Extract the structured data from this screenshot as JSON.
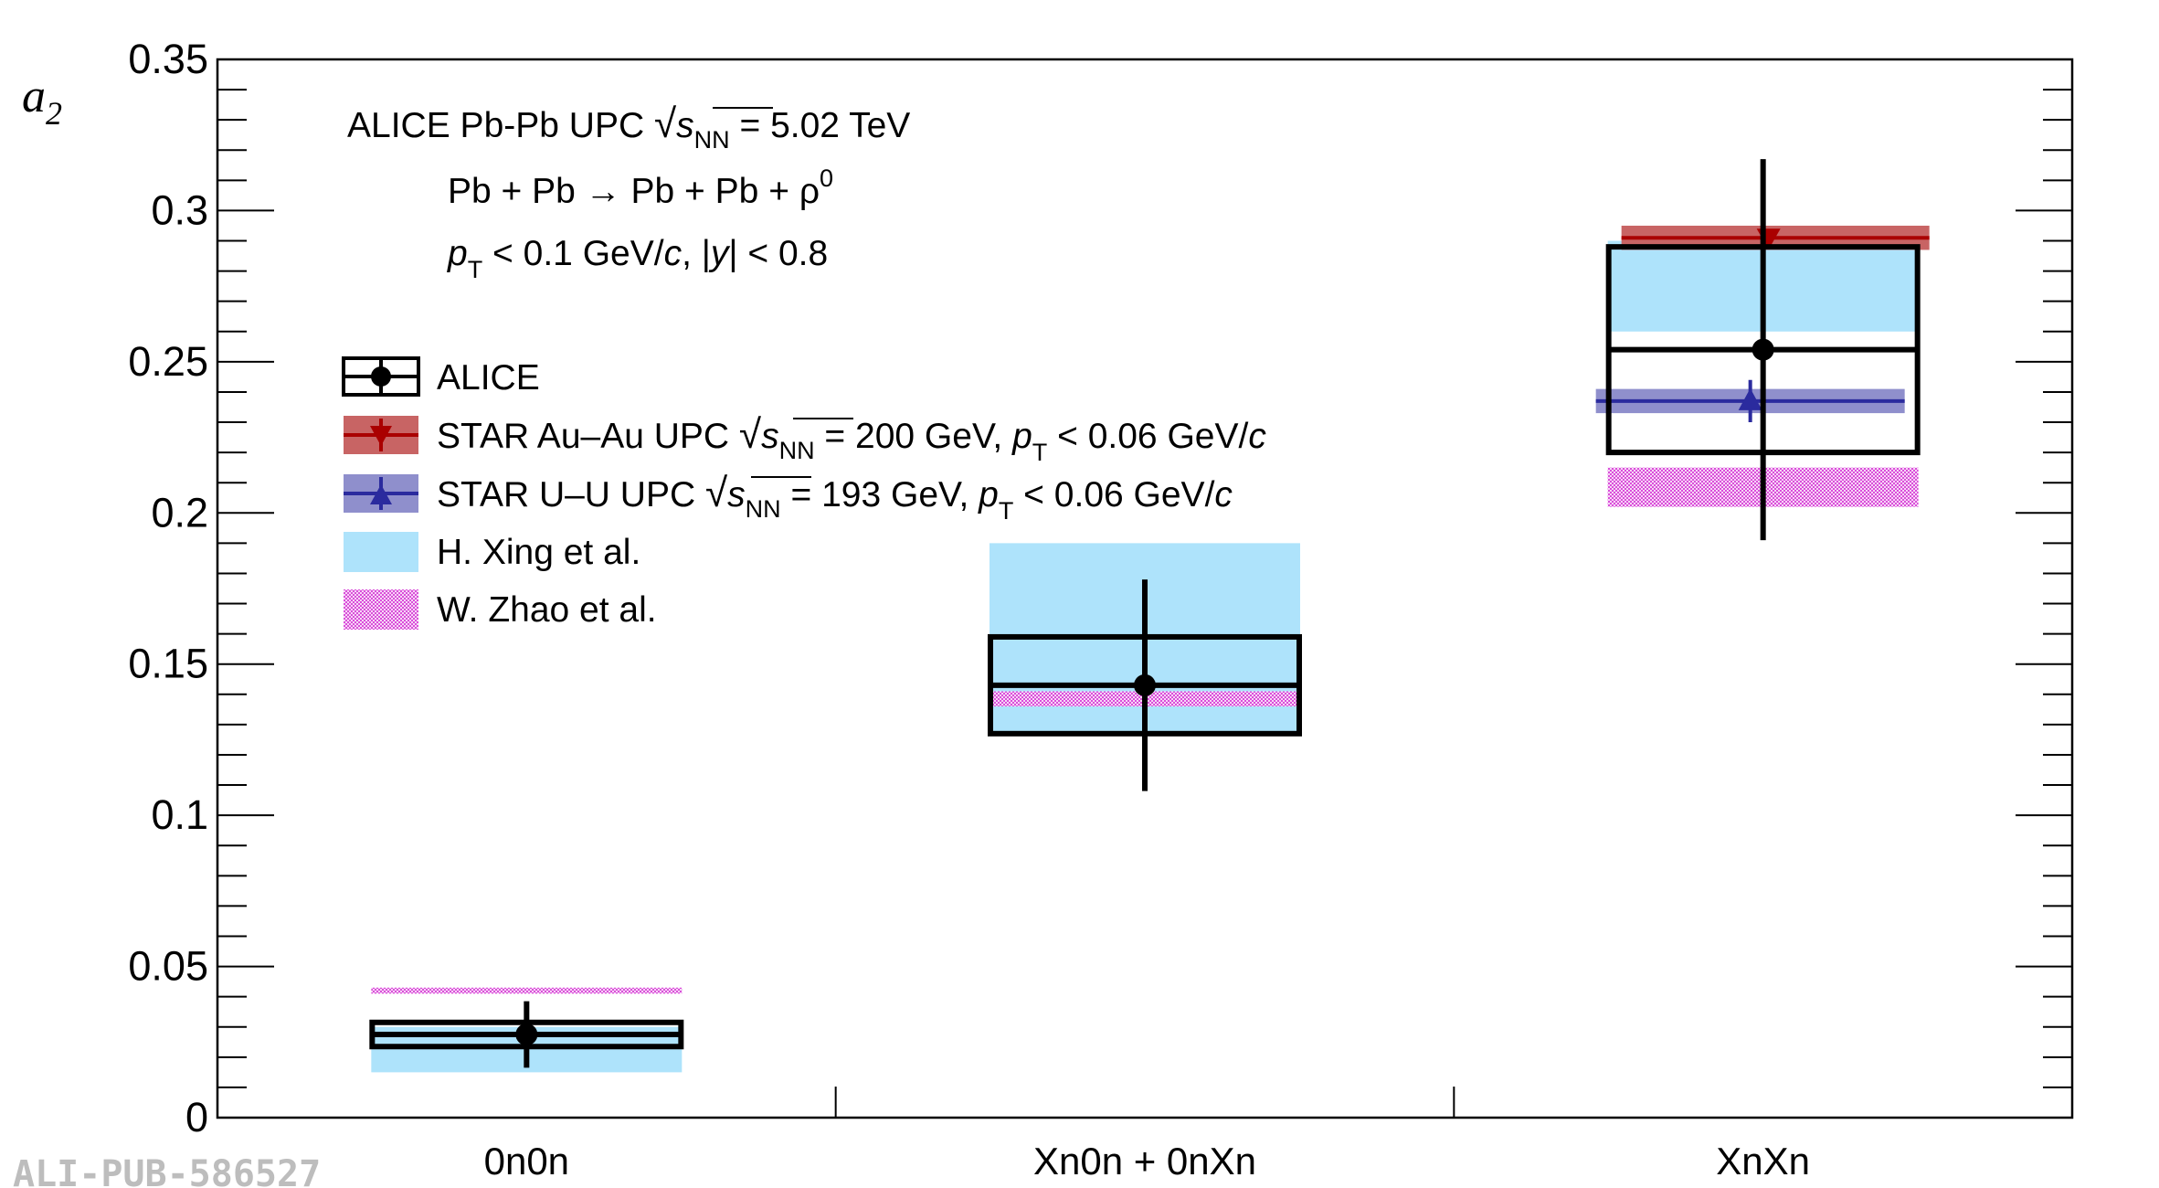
{
  "chart_data": {
    "type": "scatter",
    "ylabel": "a",
    "ylabel_sub": "2",
    "ylim": [
      0,
      0.35
    ],
    "y_ticks": [
      {
        "v": 0,
        "label": "0"
      },
      {
        "v": 0.05,
        "label": "0.05"
      },
      {
        "v": 0.1,
        "label": "0.1"
      },
      {
        "v": 0.15,
        "label": "0.15"
      },
      {
        "v": 0.2,
        "label": "0.2"
      },
      {
        "v": 0.25,
        "label": "0.25"
      },
      {
        "v": 0.3,
        "label": "0.3"
      },
      {
        "v": 0.35,
        "label": "0.35"
      }
    ],
    "categories": [
      "0n0n",
      "Xn0n + 0nXn",
      "XnXn"
    ],
    "annotations": {
      "line1_prefix": "ALICE Pb-Pb UPC ",
      "line1_s": "s",
      "line1_sub": "NN",
      "line1_suffix": " = 5.02 TeV",
      "line2_main": "Pb + Pb → Pb + Pb + ρ",
      "line2_sup": "0",
      "line3_p": "p",
      "line3_sub": "T",
      "line3_mid": " < 0.1 GeV/",
      "line3_c": "c",
      "line3_mid2": ", |",
      "line3_y": "y",
      "line3_end": "| < 0.8"
    },
    "legend": {
      "alice": "ALICE",
      "star_au_prefix": "STAR Au–Au UPC ",
      "star_au_suffix": " = 200 GeV, ",
      "star_au_cut": " < 0.06 GeV/",
      "star_u_prefix": "STAR U–U UPC ",
      "star_u_suffix": " = 193 GeV, ",
      "star_u_cut": " < 0.06 GeV/",
      "s": "s",
      "nn": "NN",
      "p": "p",
      "t": "T",
      "c": "c",
      "xing": "H. Xing et al.",
      "zhao": "W. Zhao et al."
    },
    "series": [
      {
        "name": "ALICE",
        "values": [
          0.0275,
          0.143,
          0.254
        ],
        "stat_err": [
          0.011,
          0.035,
          0.063
        ],
        "sys_low": [
          0.0235,
          0.127,
          0.22
        ],
        "sys_high": [
          0.0315,
          0.159,
          0.288
        ]
      },
      {
        "name": "STAR Au–Au UPC",
        "category": "XnXn",
        "value": 0.291,
        "band": [
          0.287,
          0.295
        ],
        "color": "#aa0000"
      },
      {
        "name": "STAR U–U UPC",
        "category": "XnXn",
        "value": 0.237,
        "band": [
          0.233,
          0.241
        ],
        "err": 0.007,
        "color": "#2b2b9e"
      },
      {
        "name": "H. Xing et al.",
        "bands": [
          [
            0.015,
            0.03
          ],
          [
            0.127,
            0.19
          ],
          [
            0.26,
            0.29
          ]
        ],
        "color": "#aee3fb"
      },
      {
        "name": "W. Zhao et al.",
        "bands": [
          [
            0.041,
            0.043
          ],
          [
            0.136,
            0.141
          ],
          [
            0.202,
            0.215
          ]
        ],
        "color": "#e062e0"
      }
    ],
    "watermark": "ALI-PUB-586527"
  }
}
